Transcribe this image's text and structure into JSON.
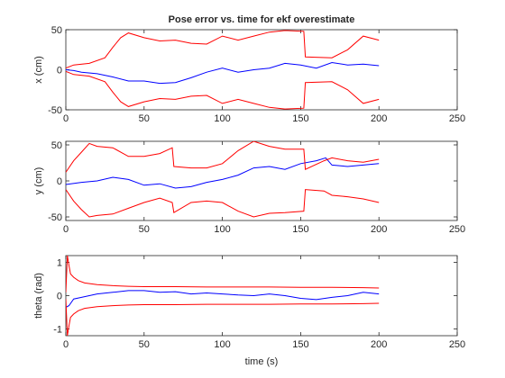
{
  "figure_title": "Pose error vs. time for ekf overestimate",
  "xlabel": "time (s)",
  "chart_data": [
    {
      "type": "line",
      "ylabel": "x (cm)",
      "xlim": [
        0,
        250
      ],
      "ylim": [
        -50,
        50
      ],
      "xticks": [
        0,
        50,
        100,
        150,
        200,
        250
      ],
      "yticks": [
        -50,
        0,
        50
      ],
      "grid": false,
      "series": [
        {
          "color": "#0000ff",
          "x": [
            0,
            5,
            10,
            20,
            30,
            40,
            50,
            60,
            70,
            80,
            90,
            100,
            110,
            120,
            130,
            140,
            150,
            160,
            170,
            180,
            190,
            200
          ],
          "y": [
            0,
            -1,
            -3,
            -5,
            -9,
            -14,
            -14,
            -17,
            -16,
            -10,
            -3,
            2,
            -3,
            0,
            2,
            8,
            6,
            2,
            9,
            6,
            7,
            5
          ]
        },
        {
          "color": "#ff0000",
          "x": [
            0,
            5,
            15,
            25,
            30,
            35,
            40,
            50,
            60,
            70,
            80,
            90,
            100,
            110,
            120,
            130,
            140,
            152,
            153,
            170,
            180,
            190,
            200
          ],
          "y": [
            2,
            6,
            8,
            15,
            28,
            40,
            46,
            40,
            36,
            37,
            33,
            32,
            42,
            37,
            42,
            47,
            49,
            48,
            16,
            15,
            25,
            42,
            37
          ]
        },
        {
          "color": "#ff0000",
          "x": [
            0,
            5,
            15,
            25,
            30,
            35,
            40,
            50,
            60,
            70,
            80,
            90,
            100,
            110,
            120,
            130,
            140,
            152,
            153,
            170,
            180,
            190,
            200
          ],
          "y": [
            -2,
            -6,
            -8,
            -15,
            -28,
            -40,
            -46,
            -40,
            -36,
            -37,
            -33,
            -32,
            -42,
            -37,
            -42,
            -47,
            -49,
            -48,
            -16,
            -15,
            -25,
            -42,
            -37
          ]
        }
      ]
    },
    {
      "type": "line",
      "ylabel": "y (cm)",
      "xlim": [
        0,
        250
      ],
      "ylim": [
        -55,
        55
      ],
      "xticks": [
        0,
        50,
        100,
        150,
        200,
        250
      ],
      "yticks": [
        -50,
        0,
        50
      ],
      "grid": false,
      "series": [
        {
          "color": "#0000ff",
          "x": [
            0,
            10,
            20,
            30,
            40,
            50,
            60,
            70,
            80,
            90,
            100,
            110,
            120,
            130,
            140,
            150,
            160,
            166,
            170,
            180,
            190,
            200
          ],
          "y": [
            -5,
            -2,
            0,
            5,
            2,
            -6,
            -4,
            -10,
            -8,
            -2,
            2,
            8,
            18,
            20,
            16,
            24,
            28,
            32,
            22,
            20,
            22,
            24
          ]
        },
        {
          "color": "#ff0000",
          "x": [
            0,
            5,
            10,
            15,
            20,
            30,
            40,
            50,
            60,
            68,
            69,
            80,
            90,
            100,
            110,
            120,
            130,
            140,
            152,
            153,
            165,
            170,
            180,
            190,
            200
          ],
          "y": [
            12,
            28,
            40,
            52,
            48,
            46,
            34,
            34,
            38,
            46,
            20,
            18,
            18,
            24,
            42,
            55,
            48,
            44,
            44,
            16,
            28,
            32,
            28,
            26,
            30
          ]
        },
        {
          "color": "#ff0000",
          "x": [
            0,
            5,
            10,
            15,
            20,
            30,
            40,
            50,
            60,
            68,
            69,
            80,
            90,
            100,
            110,
            120,
            130,
            140,
            152,
            153,
            165,
            170,
            180,
            190,
            200
          ],
          "y": [
            -12,
            -28,
            -40,
            -50,
            -48,
            -46,
            -38,
            -30,
            -24,
            -30,
            -44,
            -30,
            -28,
            -30,
            -42,
            -50,
            -45,
            -44,
            -42,
            -12,
            -14,
            -20,
            -22,
            -25,
            -30
          ]
        }
      ]
    },
    {
      "type": "line",
      "ylabel": "theta (rad)",
      "xlim": [
        0,
        250
      ],
      "ylim": [
        -1.2,
        1.2
      ],
      "xticks": [
        0,
        50,
        100,
        150,
        200,
        250
      ],
      "yticks": [
        -1,
        0,
        1
      ],
      "grid": false,
      "series": [
        {
          "color": "#0000ff",
          "x": [
            0,
            2,
            5,
            10,
            20,
            30,
            40,
            50,
            60,
            70,
            80,
            90,
            100,
            110,
            120,
            130,
            140,
            150,
            160,
            170,
            180,
            190,
            200
          ],
          "y": [
            -0.35,
            -0.3,
            -0.1,
            -0.05,
            0.05,
            0.1,
            0.15,
            0.15,
            0.1,
            0.12,
            0.05,
            0.08,
            0.05,
            0.02,
            0.0,
            0.05,
            0.0,
            -0.08,
            -0.12,
            -0.05,
            0.0,
            0.1,
            0.05
          ]
        },
        {
          "color": "#ff0000",
          "x": [
            0,
            1,
            2,
            3,
            5,
            8,
            12,
            20,
            30,
            40,
            50,
            70,
            90,
            110,
            130,
            150,
            170,
            190,
            200
          ],
          "y": [
            0.1,
            1.2,
            0.9,
            0.65,
            0.55,
            0.45,
            0.38,
            0.33,
            0.3,
            0.28,
            0.27,
            0.27,
            0.26,
            0.26,
            0.26,
            0.25,
            0.25,
            0.24,
            0.23
          ]
        },
        {
          "color": "#ff0000",
          "x": [
            0,
            1,
            2,
            3,
            5,
            8,
            12,
            20,
            30,
            40,
            50,
            70,
            90,
            110,
            130,
            150,
            170,
            190,
            200
          ],
          "y": [
            -0.1,
            -1.2,
            -0.9,
            -0.65,
            -0.55,
            -0.45,
            -0.38,
            -0.33,
            -0.3,
            -0.28,
            -0.27,
            -0.27,
            -0.26,
            -0.26,
            -0.26,
            -0.25,
            -0.25,
            -0.24,
            -0.23
          ]
        }
      ]
    }
  ]
}
